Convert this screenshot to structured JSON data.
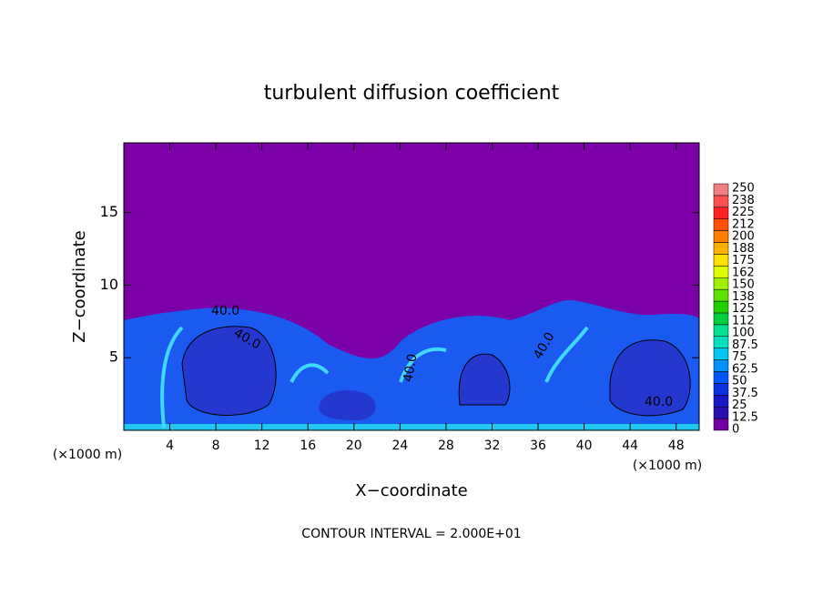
{
  "chart_data": {
    "type": "contour",
    "title": "turbulent diffusion coefficient",
    "x_label": "X−coordinate",
    "y_label": "Z−coordinate",
    "x_unit_left": "(×1000 m)",
    "x_unit_right": "(×1000 m)",
    "footnote": "CONTOUR INTERVAL = 2.000E+01",
    "xlim": [
      0,
      50
    ],
    "xticks": [
      4,
      8,
      12,
      16,
      20,
      24,
      28,
      32,
      36,
      40,
      44,
      48
    ],
    "ylim": [
      0,
      19.8
    ],
    "yticks": [
      5,
      10,
      15
    ],
    "contour_labels": [
      "40.0",
      "40.0",
      "40.0",
      "40.0",
      "40.0"
    ],
    "colorbar": {
      "levels": [
        0,
        12.5,
        25,
        37.5,
        50,
        62.5,
        75,
        87.5,
        100,
        112,
        125,
        138,
        150,
        162,
        175,
        188,
        200,
        212,
        225,
        238,
        250
      ],
      "colors": [
        "#7000a0",
        "#2a10b0",
        "#1818c8",
        "#0a30e0",
        "#0058f8",
        "#0090f8",
        "#00c8f0",
        "#00e0c0",
        "#00e090",
        "#00d040",
        "#20d000",
        "#60e000",
        "#a0f000",
        "#e0ff00",
        "#ffe000",
        "#ffb000",
        "#ff8000",
        "#ff5000",
        "#ff2020",
        "#ff5050",
        "#f08080"
      ]
    }
  }
}
